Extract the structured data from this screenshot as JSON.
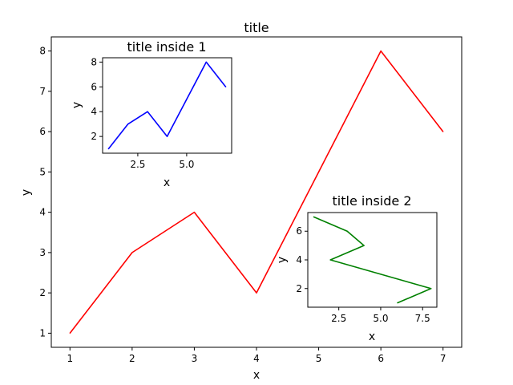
{
  "chart_data": [
    {
      "type": "line",
      "title": "title",
      "xlabel": "x",
      "ylabel": "y",
      "x": [
        1,
        2,
        3,
        4,
        5,
        6,
        7
      ],
      "series": [
        {
          "values": [
            1,
            3,
            4,
            2,
            5,
            8,
            6
          ],
          "color": "#ff0000"
        }
      ],
      "xlim": [
        0.7,
        7.3
      ],
      "ylim": [
        0.65,
        8.35
      ],
      "xticks": [
        1,
        2,
        3,
        4,
        5,
        6,
        7
      ],
      "xtick_labels": [
        "1",
        "2",
        "3",
        "4",
        "5",
        "6",
        "7"
      ],
      "yticks": [
        1,
        2,
        3,
        4,
        5,
        6,
        7,
        8
      ],
      "ytick_labels": [
        "1",
        "2",
        "3",
        "4",
        "5",
        "6",
        "7",
        "8"
      ],
      "grid": false
    },
    {
      "type": "line",
      "title": "title inside 1",
      "xlabel": "x",
      "ylabel": "y",
      "x": [
        1,
        2,
        3,
        4,
        5,
        6,
        7
      ],
      "series": [
        {
          "values": [
            1,
            3,
            4,
            2,
            5,
            8,
            6
          ],
          "color": "#0000ff"
        }
      ],
      "xlim": [
        0.7,
        7.3
      ],
      "ylim": [
        0.65,
        8.35
      ],
      "xticks": [
        2.5,
        5.0
      ],
      "xtick_labels": [
        "2.5",
        "5.0"
      ],
      "yticks": [
        2,
        4,
        6,
        8
      ],
      "ytick_labels": [
        "2",
        "4",
        "6",
        "8"
      ],
      "grid": false
    },
    {
      "type": "line",
      "title": "title inside 2",
      "xlabel": "x",
      "ylabel": "y",
      "x": [
        6,
        8,
        5,
        2,
        4,
        3,
        1
      ],
      "series": [
        {
          "values": [
            1,
            2,
            3,
            4,
            5,
            6,
            7
          ],
          "color": "#008000"
        }
      ],
      "xlim": [
        0.65,
        8.35
      ],
      "ylim": [
        0.7,
        7.3
      ],
      "xticks": [
        2.5,
        5.0,
        7.5
      ],
      "xtick_labels": [
        "2.5",
        "5.0",
        "7.5"
      ],
      "yticks": [
        2,
        4,
        6
      ],
      "ytick_labels": [
        "2",
        "4",
        "6"
      ],
      "grid": false
    }
  ]
}
